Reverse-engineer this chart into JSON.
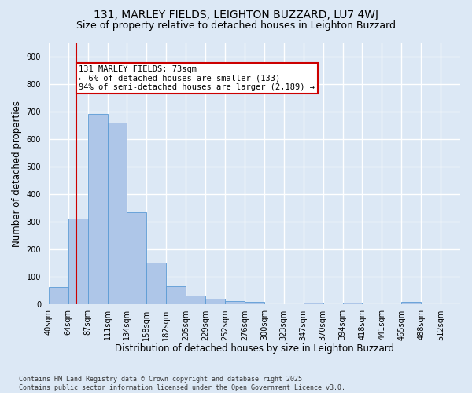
{
  "title": "131, MARLEY FIELDS, LEIGHTON BUZZARD, LU7 4WJ",
  "subtitle": "Size of property relative to detached houses in Leighton Buzzard",
  "xlabel": "Distribution of detached houses by size in Leighton Buzzard",
  "ylabel": "Number of detached properties",
  "footer_line1": "Contains HM Land Registry data © Crown copyright and database right 2025.",
  "footer_line2": "Contains public sector information licensed under the Open Government Licence v3.0.",
  "bin_labels": [
    "40sqm",
    "64sqm",
    "87sqm",
    "111sqm",
    "134sqm",
    "158sqm",
    "182sqm",
    "205sqm",
    "229sqm",
    "252sqm",
    "276sqm",
    "300sqm",
    "323sqm",
    "347sqm",
    "370sqm",
    "394sqm",
    "418sqm",
    "441sqm",
    "465sqm",
    "488sqm",
    "512sqm"
  ],
  "bar_values": [
    62,
    313,
    693,
    661,
    336,
    152,
    67,
    31,
    19,
    13,
    9,
    0,
    0,
    7,
    0,
    5,
    0,
    0,
    8,
    0,
    0
  ],
  "bar_color": "#aec6e8",
  "bar_edge_color": "#5b9bd5",
  "ylim": [
    0,
    950
  ],
  "yticks": [
    0,
    100,
    200,
    300,
    400,
    500,
    600,
    700,
    800,
    900
  ],
  "subject_bin_index": 1.4,
  "annotation_line1": "131 MARLEY FIELDS: 73sqm",
  "annotation_line2": "← 6% of detached houses are smaller (133)",
  "annotation_line3": "94% of semi-detached houses are larger (2,189) →",
  "red_line_color": "#cc0000",
  "annotation_box_color": "#ffffff",
  "annotation_box_edge": "#cc0000",
  "background_color": "#dce8f5",
  "plot_bg_color": "#dce8f5",
  "grid_color": "#ffffff",
  "title_fontsize": 10,
  "subtitle_fontsize": 9,
  "tick_fontsize": 7,
  "ylabel_fontsize": 8.5,
  "xlabel_fontsize": 8.5,
  "annotation_fontsize": 7.5,
  "footer_fontsize": 6
}
